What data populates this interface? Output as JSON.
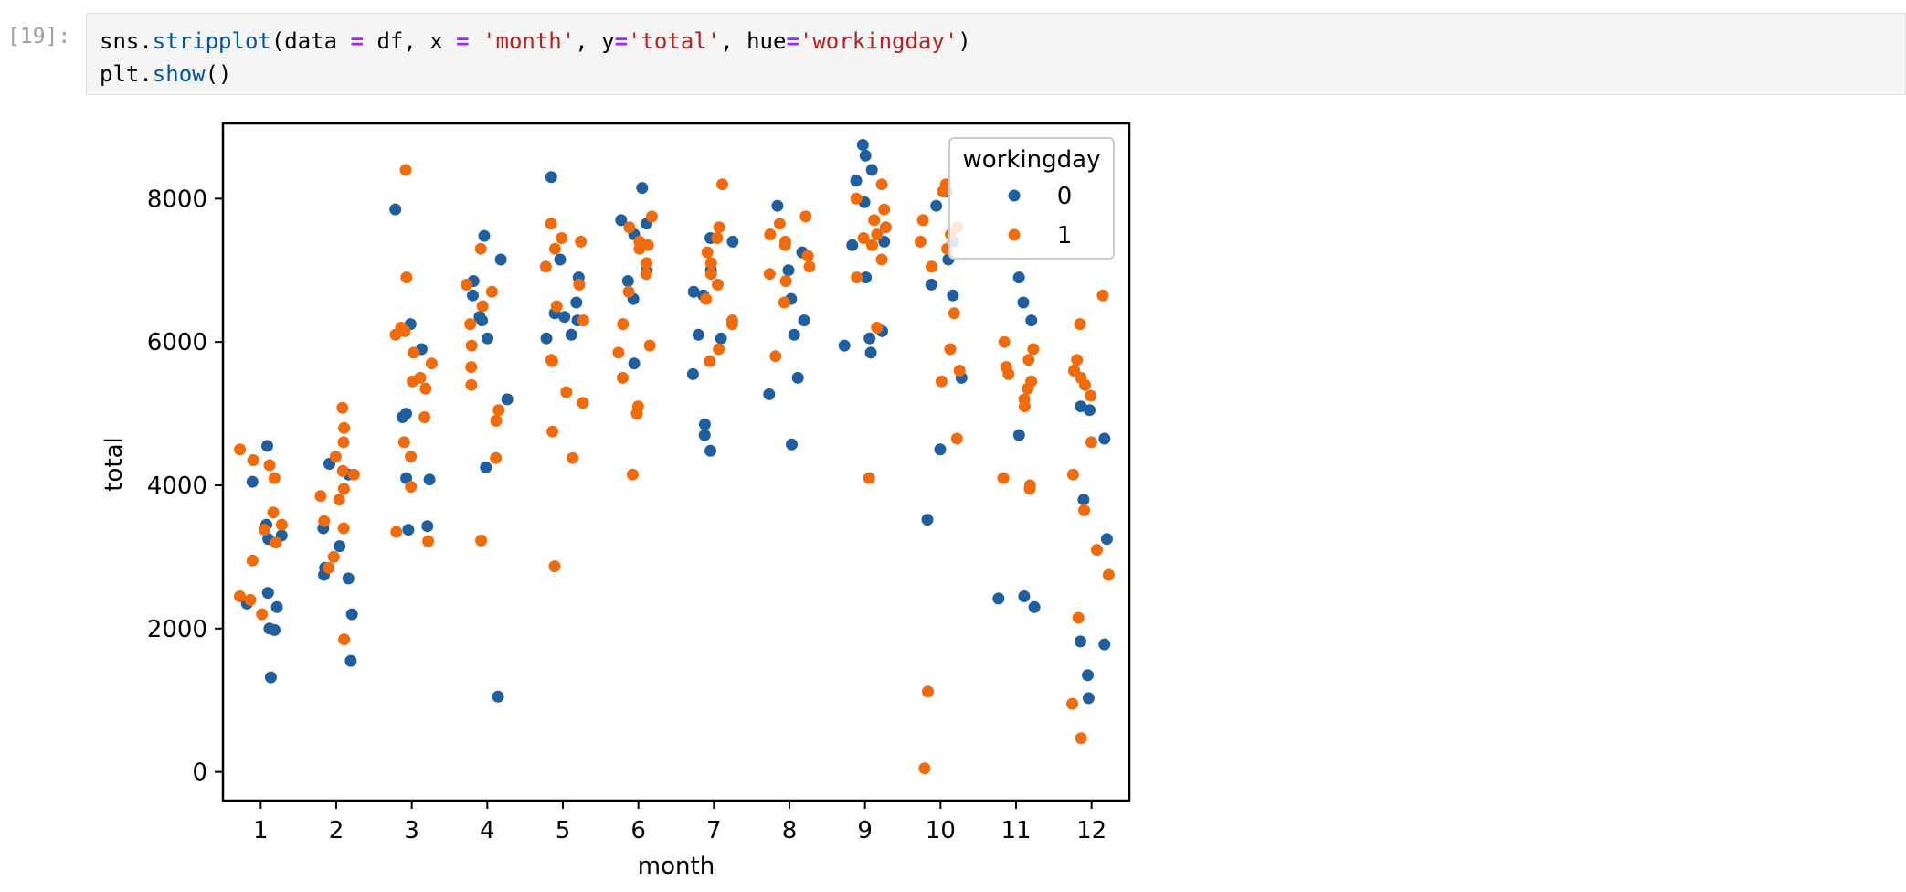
{
  "cell": {
    "prompt": "[19]:",
    "code_lines": [
      [
        {
          "t": "sns.",
          "c": "plain"
        },
        {
          "t": "stripplot",
          "c": "fn"
        },
        {
          "t": "(data ",
          "c": "plain"
        },
        {
          "t": "=",
          "c": "op"
        },
        {
          "t": " df, x ",
          "c": "plain"
        },
        {
          "t": "=",
          "c": "op"
        },
        {
          "t": " ",
          "c": "plain"
        },
        {
          "t": "'month'",
          "c": "str"
        },
        {
          "t": ", y",
          "c": "plain"
        },
        {
          "t": "=",
          "c": "op"
        },
        {
          "t": "'total'",
          "c": "str"
        },
        {
          "t": ", hue",
          "c": "plain"
        },
        {
          "t": "=",
          "c": "op"
        },
        {
          "t": "'workingday'",
          "c": "str"
        },
        {
          "t": ")",
          "c": "plain"
        }
      ],
      [
        {
          "t": "plt.",
          "c": "plain"
        },
        {
          "t": "show",
          "c": "fn"
        },
        {
          "t": "()",
          "c": "plain"
        }
      ]
    ]
  },
  "colors": {
    "series0": "#1f5fa0",
    "series1": "#f26b0a"
  },
  "chart_data": {
    "type": "scatter",
    "title": "",
    "xlabel": "month",
    "ylabel": "total",
    "categories": [
      "1",
      "2",
      "3",
      "4",
      "5",
      "6",
      "7",
      "8",
      "9",
      "10",
      "11",
      "12"
    ],
    "yticks": [
      0,
      2000,
      4000,
      6000,
      8000
    ],
    "ylim": [
      -400,
      9050
    ],
    "grid": false,
    "legend": {
      "title": "workingday",
      "entries": [
        "0",
        "1"
      ],
      "placement": "top-right"
    },
    "series": [
      {
        "name": "0",
        "points": [
          [
            1,
            4550
          ],
          [
            1,
            4050
          ],
          [
            1,
            3450
          ],
          [
            1,
            3300
          ],
          [
            1,
            3250
          ],
          [
            1,
            2500
          ],
          [
            1,
            2350
          ],
          [
            1,
            2300
          ],
          [
            1,
            2000
          ],
          [
            1,
            1980
          ],
          [
            1,
            1320
          ],
          [
            2,
            4300
          ],
          [
            2,
            4150
          ],
          [
            2,
            3400
          ],
          [
            2,
            3150
          ],
          [
            2,
            2850
          ],
          [
            2,
            2750
          ],
          [
            2,
            2700
          ],
          [
            2,
            2200
          ],
          [
            2,
            1550
          ],
          [
            3,
            7850
          ],
          [
            3,
            6250
          ],
          [
            3,
            5900
          ],
          [
            3,
            5000
          ],
          [
            3,
            4950
          ],
          [
            3,
            4100
          ],
          [
            3,
            4080
          ],
          [
            3,
            3430
          ],
          [
            3,
            3380
          ],
          [
            4,
            7480
          ],
          [
            4,
            7150
          ],
          [
            4,
            6850
          ],
          [
            4,
            6650
          ],
          [
            4,
            6350
          ],
          [
            4,
            6300
          ],
          [
            4,
            6050
          ],
          [
            4,
            5200
          ],
          [
            4,
            4250
          ],
          [
            4,
            1050
          ],
          [
            5,
            8300
          ],
          [
            5,
            7150
          ],
          [
            5,
            6900
          ],
          [
            5,
            6550
          ],
          [
            5,
            6400
          ],
          [
            5,
            6350
          ],
          [
            5,
            6300
          ],
          [
            5,
            6100
          ],
          [
            5,
            6050
          ],
          [
            6,
            8150
          ],
          [
            6,
            7700
          ],
          [
            6,
            7650
          ],
          [
            6,
            7500
          ],
          [
            6,
            7000
          ],
          [
            6,
            6850
          ],
          [
            6,
            6600
          ],
          [
            6,
            5700
          ],
          [
            7,
            7450
          ],
          [
            7,
            7400
          ],
          [
            7,
            7000
          ],
          [
            7,
            6700
          ],
          [
            7,
            6650
          ],
          [
            7,
            6100
          ],
          [
            7,
            6050
          ],
          [
            7,
            5550
          ],
          [
            7,
            4850
          ],
          [
            7,
            4700
          ],
          [
            7,
            4480
          ],
          [
            8,
            7900
          ],
          [
            8,
            7250
          ],
          [
            8,
            7000
          ],
          [
            8,
            6600
          ],
          [
            8,
            6300
          ],
          [
            8,
            6100
          ],
          [
            8,
            5500
          ],
          [
            8,
            5270
          ],
          [
            8,
            4570
          ],
          [
            9,
            8750
          ],
          [
            9,
            8600
          ],
          [
            9,
            8400
          ],
          [
            9,
            8250
          ],
          [
            9,
            7950
          ],
          [
            9,
            7400
          ],
          [
            9,
            7350
          ],
          [
            9,
            6900
          ],
          [
            9,
            6150
          ],
          [
            9,
            6050
          ],
          [
            9,
            5950
          ],
          [
            9,
            5850
          ],
          [
            10,
            8100
          ],
          [
            10,
            7900
          ],
          [
            10,
            7400
          ],
          [
            10,
            7150
          ],
          [
            10,
            6800
          ],
          [
            10,
            6650
          ],
          [
            10,
            5500
          ],
          [
            10,
            4500
          ],
          [
            10,
            3520
          ],
          [
            11,
            6900
          ],
          [
            11,
            6550
          ],
          [
            11,
            6300
          ],
          [
            11,
            4700
          ],
          [
            11,
            2450
          ],
          [
            11,
            2420
          ],
          [
            11,
            2300
          ],
          [
            12,
            5600
          ],
          [
            12,
            5100
          ],
          [
            12,
            5050
          ],
          [
            12,
            4650
          ],
          [
            12,
            3800
          ],
          [
            12,
            3250
          ],
          [
            12,
            1820
          ],
          [
            12,
            1780
          ],
          [
            12,
            1350
          ],
          [
            12,
            1030
          ]
        ]
      },
      {
        "name": "1",
        "points": [
          [
            1,
            4500
          ],
          [
            1,
            4350
          ],
          [
            1,
            4280
          ],
          [
            1,
            4100
          ],
          [
            1,
            3620
          ],
          [
            1,
            3450
          ],
          [
            1,
            3380
          ],
          [
            1,
            3200
          ],
          [
            1,
            2950
          ],
          [
            1,
            2450
          ],
          [
            1,
            2400
          ],
          [
            1,
            2200
          ],
          [
            2,
            5080
          ],
          [
            2,
            4800
          ],
          [
            2,
            4600
          ],
          [
            2,
            4400
          ],
          [
            2,
            4200
          ],
          [
            2,
            4150
          ],
          [
            2,
            3950
          ],
          [
            2,
            3850
          ],
          [
            2,
            3800
          ],
          [
            2,
            3500
          ],
          [
            2,
            3400
          ],
          [
            2,
            3000
          ],
          [
            2,
            2850
          ],
          [
            2,
            1850
          ],
          [
            3,
            8400
          ],
          [
            3,
            6900
          ],
          [
            3,
            6200
          ],
          [
            3,
            6150
          ],
          [
            3,
            6100
          ],
          [
            3,
            5850
          ],
          [
            3,
            5700
          ],
          [
            3,
            5500
          ],
          [
            3,
            5450
          ],
          [
            3,
            5350
          ],
          [
            3,
            4950
          ],
          [
            3,
            4600
          ],
          [
            3,
            4400
          ],
          [
            3,
            3980
          ],
          [
            3,
            3350
          ],
          [
            3,
            3220
          ],
          [
            4,
            7300
          ],
          [
            4,
            6800
          ],
          [
            4,
            6700
          ],
          [
            4,
            6500
          ],
          [
            4,
            6250
          ],
          [
            4,
            5950
          ],
          [
            4,
            5650
          ],
          [
            4,
            5400
          ],
          [
            4,
            5050
          ],
          [
            4,
            4900
          ],
          [
            4,
            4380
          ],
          [
            4,
            3230
          ],
          [
            5,
            7650
          ],
          [
            5,
            7450
          ],
          [
            5,
            7400
          ],
          [
            5,
            7300
          ],
          [
            5,
            7050
          ],
          [
            5,
            6800
          ],
          [
            5,
            6500
          ],
          [
            5,
            6300
          ],
          [
            5,
            5750
          ],
          [
            5,
            5730
          ],
          [
            5,
            5300
          ],
          [
            5,
            5150
          ],
          [
            5,
            4750
          ],
          [
            5,
            4380
          ],
          [
            5,
            2870
          ],
          [
            6,
            7750
          ],
          [
            6,
            7600
          ],
          [
            6,
            7400
          ],
          [
            6,
            7350
          ],
          [
            6,
            7300
          ],
          [
            6,
            7100
          ],
          [
            6,
            6950
          ],
          [
            6,
            6700
          ],
          [
            6,
            6250
          ],
          [
            6,
            5950
          ],
          [
            6,
            5850
          ],
          [
            6,
            5500
          ],
          [
            6,
            5100
          ],
          [
            6,
            5000
          ],
          [
            6,
            4150
          ],
          [
            7,
            8200
          ],
          [
            7,
            7600
          ],
          [
            7,
            7450
          ],
          [
            7,
            7250
          ],
          [
            7,
            7100
          ],
          [
            7,
            6950
          ],
          [
            7,
            6800
          ],
          [
            7,
            6600
          ],
          [
            7,
            6300
          ],
          [
            7,
            6250
          ],
          [
            7,
            5900
          ],
          [
            7,
            5730
          ],
          [
            8,
            7750
          ],
          [
            8,
            7650
          ],
          [
            8,
            7500
          ],
          [
            8,
            7400
          ],
          [
            8,
            7350
          ],
          [
            8,
            7200
          ],
          [
            8,
            7050
          ],
          [
            8,
            6950
          ],
          [
            8,
            6850
          ],
          [
            8,
            6550
          ],
          [
            8,
            5800
          ],
          [
            9,
            8200
          ],
          [
            9,
            8000
          ],
          [
            9,
            7850
          ],
          [
            9,
            7700
          ],
          [
            9,
            7600
          ],
          [
            9,
            7500
          ],
          [
            9,
            7450
          ],
          [
            9,
            7350
          ],
          [
            9,
            7150
          ],
          [
            9,
            6900
          ],
          [
            9,
            6200
          ],
          [
            9,
            4100
          ],
          [
            10,
            8200
          ],
          [
            10,
            8100
          ],
          [
            10,
            7700
          ],
          [
            10,
            7600
          ],
          [
            10,
            7500
          ],
          [
            10,
            7400
          ],
          [
            10,
            7300
          ],
          [
            10,
            7050
          ],
          [
            10,
            6400
          ],
          [
            10,
            5900
          ],
          [
            10,
            5600
          ],
          [
            10,
            5450
          ],
          [
            10,
            4650
          ],
          [
            10,
            1120
          ],
          [
            10,
            50
          ],
          [
            11,
            6000
          ],
          [
            11,
            5900
          ],
          [
            11,
            5750
          ],
          [
            11,
            5650
          ],
          [
            11,
            5550
          ],
          [
            11,
            5450
          ],
          [
            11,
            5350
          ],
          [
            11,
            5200
          ],
          [
            11,
            5100
          ],
          [
            11,
            4100
          ],
          [
            11,
            4000
          ],
          [
            11,
            3950
          ],
          [
            12,
            6650
          ],
          [
            12,
            6250
          ],
          [
            12,
            5750
          ],
          [
            12,
            5600
          ],
          [
            12,
            5500
          ],
          [
            12,
            5400
          ],
          [
            12,
            5250
          ],
          [
            12,
            4600
          ],
          [
            12,
            4150
          ],
          [
            12,
            3650
          ],
          [
            12,
            3100
          ],
          [
            12,
            2750
          ],
          [
            12,
            2150
          ],
          [
            12,
            950
          ],
          [
            12,
            470
          ]
        ]
      }
    ]
  }
}
